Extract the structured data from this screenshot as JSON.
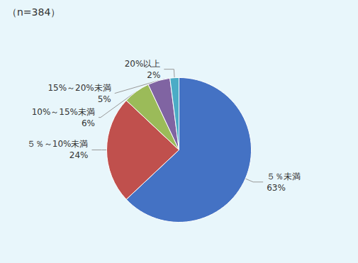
{
  "chart_data": {
    "type": "pie",
    "categories": [
      "５％未満",
      "５％～10%未満",
      "10%～15%未満",
      "15%～20%未満",
      "20%以上"
    ],
    "values": [
      63,
      24,
      6,
      5,
      2
    ],
    "value_labels": [
      "63%",
      "24%",
      "6%",
      "5%",
      "2%"
    ],
    "colors": [
      "#4472C4",
      "#C0504D",
      "#9BBB59",
      "#8064A2",
      "#4BACC6"
    ],
    "annotation": "（n=384）"
  }
}
